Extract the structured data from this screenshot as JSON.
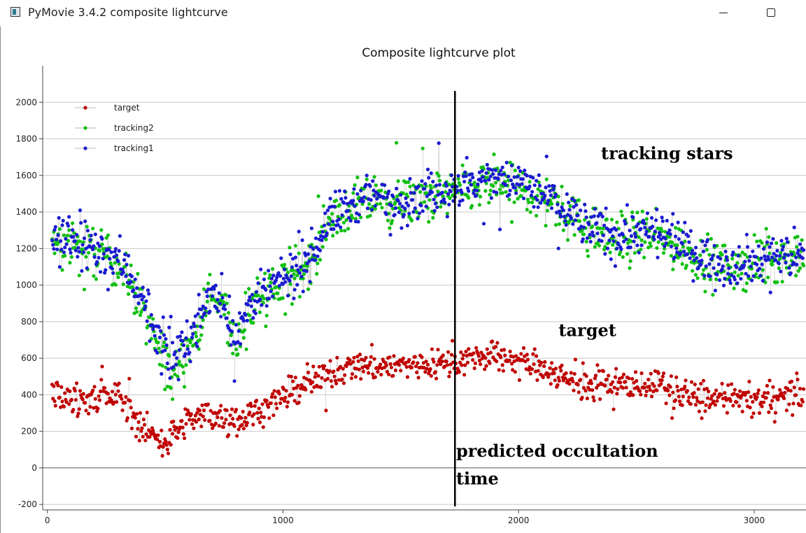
{
  "window": {
    "title": "PyMovie 3.4.2 composite lightcurve",
    "app_icon": "app-icon",
    "minimize_icon": "minimize-icon",
    "maximize_icon": "maximize-icon"
  },
  "chart_data": {
    "type": "scatter",
    "title": "Composite lightcurve plot",
    "xlabel": "",
    "ylabel": "",
    "xlim": [
      -20,
      3220
    ],
    "ylim": [
      -230,
      2200
    ],
    "x_ticks": [
      0,
      1000,
      2000,
      3000
    ],
    "y_ticks": [
      -200,
      0,
      200,
      400,
      600,
      800,
      1000,
      1200,
      1400,
      1600,
      1800,
      2000
    ],
    "grid": "horizontal",
    "legend": "top-left",
    "connector_color": "#d4d4d4",
    "series": [
      {
        "name": "target",
        "color": "#c00000",
        "noise": 75,
        "profile": [
          [
            20,
            400
          ],
          [
            150,
            380
          ],
          [
            300,
            400
          ],
          [
            400,
            220
          ],
          [
            500,
            140
          ],
          [
            600,
            260
          ],
          [
            700,
            290
          ],
          [
            800,
            250
          ],
          [
            900,
            330
          ],
          [
            1000,
            380
          ],
          [
            1100,
            450
          ],
          [
            1200,
            510
          ],
          [
            1300,
            560
          ],
          [
            1500,
            560
          ],
          [
            1600,
            570
          ],
          [
            1700,
            580
          ],
          [
            1800,
            600
          ],
          [
            1900,
            610
          ],
          [
            2000,
            590
          ],
          [
            2100,
            550
          ],
          [
            2200,
            490
          ],
          [
            2300,
            460
          ],
          [
            2400,
            450
          ],
          [
            2500,
            460
          ],
          [
            2600,
            450
          ],
          [
            2700,
            400
          ],
          [
            2800,
            380
          ],
          [
            2900,
            370
          ],
          [
            3000,
            370
          ],
          [
            3100,
            390
          ],
          [
            3200,
            400
          ]
        ]
      },
      {
        "name": "tracking2",
        "color": "#10c010",
        "noise": 120,
        "profile": [
          [
            20,
            1240
          ],
          [
            150,
            1200
          ],
          [
            300,
            1120
          ],
          [
            380,
            950
          ],
          [
            450,
            700
          ],
          [
            520,
            520
          ],
          [
            600,
            650
          ],
          [
            700,
            950
          ],
          [
            760,
            850
          ],
          [
            800,
            650
          ],
          [
            860,
            880
          ],
          [
            1000,
            1000
          ],
          [
            1100,
            1100
          ],
          [
            1200,
            1350
          ],
          [
            1300,
            1430
          ],
          [
            1400,
            1460
          ],
          [
            1500,
            1450
          ],
          [
            1600,
            1480
          ],
          [
            1700,
            1500
          ],
          [
            1800,
            1520
          ],
          [
            1900,
            1560
          ],
          [
            2000,
            1530
          ],
          [
            2100,
            1480
          ],
          [
            2200,
            1400
          ],
          [
            2300,
            1300
          ],
          [
            2400,
            1250
          ],
          [
            2500,
            1280
          ],
          [
            2600,
            1250
          ],
          [
            2700,
            1200
          ],
          [
            2800,
            1120
          ],
          [
            2900,
            1100
          ],
          [
            3000,
            1110
          ],
          [
            3100,
            1150
          ],
          [
            3200,
            1150
          ]
        ]
      },
      {
        "name": "tracking1",
        "color": "#1a1ad0",
        "noise": 110,
        "profile": [
          [
            20,
            1260
          ],
          [
            150,
            1230
          ],
          [
            300,
            1150
          ],
          [
            380,
            1000
          ],
          [
            450,
            760
          ],
          [
            520,
            570
          ],
          [
            600,
            700
          ],
          [
            700,
            960
          ],
          [
            760,
            870
          ],
          [
            800,
            700
          ],
          [
            860,
            900
          ],
          [
            1000,
            1020
          ],
          [
            1100,
            1120
          ],
          [
            1200,
            1370
          ],
          [
            1300,
            1450
          ],
          [
            1400,
            1480
          ],
          [
            1500,
            1470
          ],
          [
            1600,
            1500
          ],
          [
            1700,
            1520
          ],
          [
            1800,
            1550
          ],
          [
            1900,
            1590
          ],
          [
            2000,
            1560
          ],
          [
            2100,
            1500
          ],
          [
            2200,
            1420
          ],
          [
            2300,
            1320
          ],
          [
            2400,
            1270
          ],
          [
            2500,
            1300
          ],
          [
            2600,
            1270
          ],
          [
            2700,
            1220
          ],
          [
            2800,
            1140
          ],
          [
            2900,
            1120
          ],
          [
            3000,
            1130
          ],
          [
            3100,
            1170
          ],
          [
            3200,
            1170
          ]
        ]
      }
    ],
    "annotations": [
      {
        "text": "tracking stars",
        "x": 2350,
        "y": 1690
      },
      {
        "text": "target",
        "x": 2170,
        "y": 720
      },
      {
        "text": "predicted occultation",
        "x": 1735,
        "y": 60
      },
      {
        "text": "time",
        "x": 1735,
        "y": -90
      }
    ],
    "vertical_marker": {
      "x": 1730,
      "label": "predicted occultation time"
    }
  }
}
